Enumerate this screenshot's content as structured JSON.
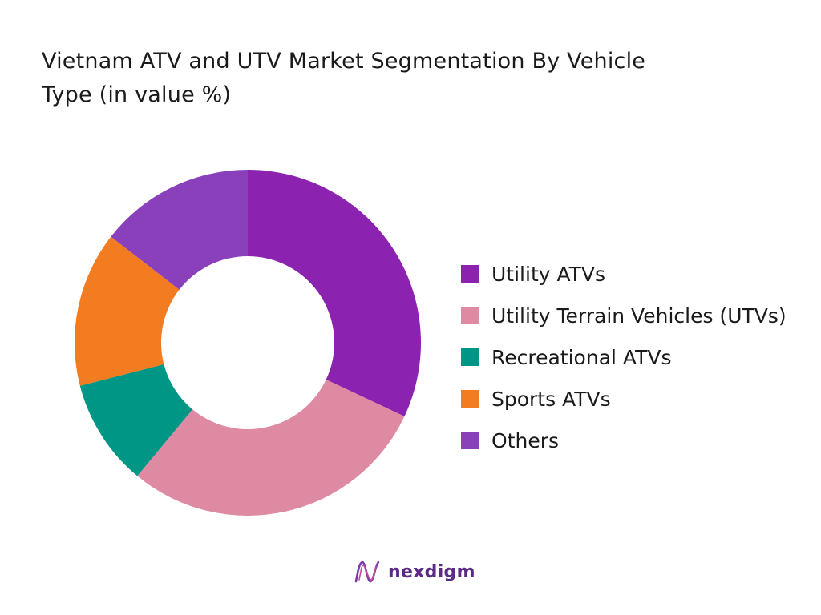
{
  "chart_data": {
    "type": "pie",
    "title": "Vietnam ATV and UTV Market Segmentation By Vehicle Type (in value %)",
    "donut": true,
    "categories": [
      "Utility ATVs",
      "Utility Terrain Vehicles (UTVs)",
      "Recreational ATVs",
      "Sports ATVs",
      "Others"
    ],
    "values": [
      32,
      29,
      10,
      14.5,
      14.5
    ],
    "colors": [
      "#8c23b0",
      "#de8aa3",
      "#009686",
      "#f47c20",
      "#8a3fbb"
    ],
    "legend_position": "right"
  },
  "brand": {
    "name": "nexdigm"
  }
}
